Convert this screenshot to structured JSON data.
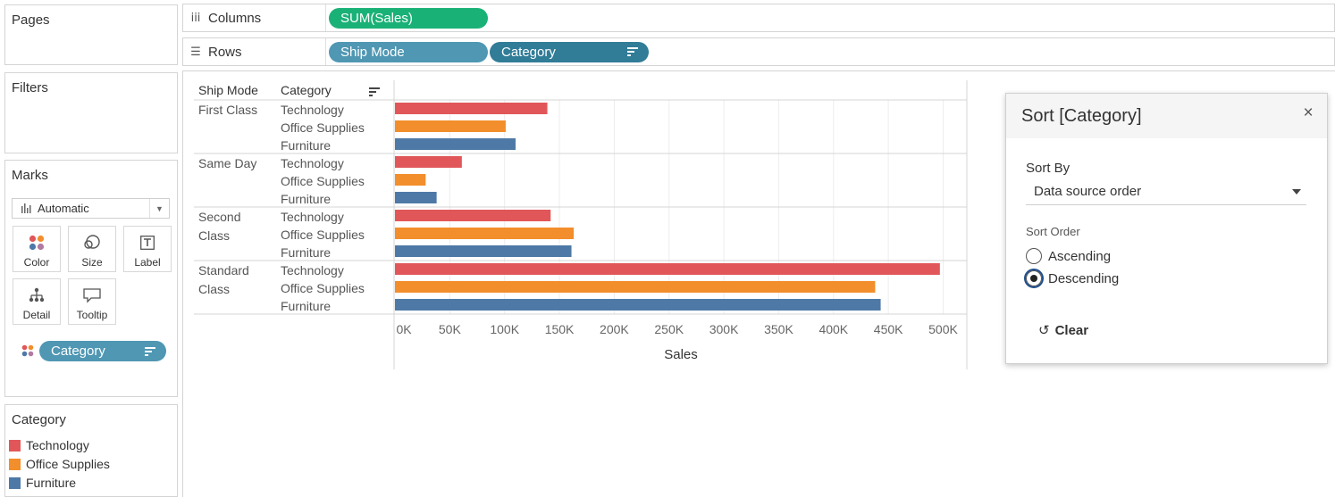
{
  "pages_card": {
    "title": "Pages"
  },
  "filters_card": {
    "title": "Filters"
  },
  "marks_card": {
    "title": "Marks",
    "mark_type": "Automatic",
    "buttons": [
      {
        "label": "Color",
        "icon": "color-dots-icon"
      },
      {
        "label": "Size",
        "icon": "size-icon"
      },
      {
        "label": "Label",
        "icon": "text-label-icon"
      },
      {
        "label": "Detail",
        "icon": "detail-hierarchy-icon"
      },
      {
        "label": "Tooltip",
        "icon": "tooltip-bubble-icon"
      }
    ],
    "color_field": "Category"
  },
  "legend": {
    "title": "Category",
    "items": [
      {
        "label": "Technology",
        "color": "#e15759"
      },
      {
        "label": "Office Supplies",
        "color": "#f28e2b"
      },
      {
        "label": "Furniture",
        "color": "#4e79a7"
      }
    ]
  },
  "shelves": {
    "columns": {
      "label": "Columns",
      "pills": [
        "SUM(Sales)"
      ]
    },
    "rows": {
      "label": "Rows",
      "pills": [
        "Ship Mode",
        "Category"
      ]
    }
  },
  "viz": {
    "headers": {
      "ship_mode": "Ship Mode",
      "category": "Category"
    },
    "groups": [
      {
        "name_line1": "First Class",
        "name_line2": ""
      },
      {
        "name_line1": "Same Day",
        "name_line2": ""
      },
      {
        "name_line1": "Second",
        "name_line2": "Class"
      },
      {
        "name_line1": "Standard",
        "name_line2": "Class"
      }
    ]
  },
  "chart_data": {
    "type": "bar",
    "orientation": "horizontal",
    "xlabel": "Sales",
    "xlim": [
      0,
      520000
    ],
    "ticks": [
      0,
      50000,
      100000,
      150000,
      200000,
      250000,
      300000,
      350000,
      400000,
      450000,
      500000
    ],
    "tick_labels": [
      "0K",
      "50K",
      "100K",
      "150K",
      "200K",
      "250K",
      "300K",
      "350K",
      "400K",
      "450K",
      "500K"
    ],
    "grid": true,
    "groups": [
      "First Class",
      "Same Day",
      "Second Class",
      "Standard Class"
    ],
    "series": [
      {
        "name": "Technology",
        "color": "#e15759",
        "values": [
          139000,
          61000,
          142000,
          497000
        ]
      },
      {
        "name": "Office Supplies",
        "color": "#f28e2b",
        "values": [
          101000,
          28000,
          163000,
          438000
        ]
      },
      {
        "name": "Furniture",
        "color": "#4e79a7",
        "values": [
          110000,
          38000,
          161000,
          443000
        ]
      }
    ]
  },
  "sort_dialog": {
    "title": "Sort [Category]",
    "sort_by_label": "Sort By",
    "sort_by_value": "Data source order",
    "sort_order_label": "Sort Order",
    "options": [
      "Ascending",
      "Descending"
    ],
    "selected": "Descending",
    "clear_label": "Clear"
  }
}
